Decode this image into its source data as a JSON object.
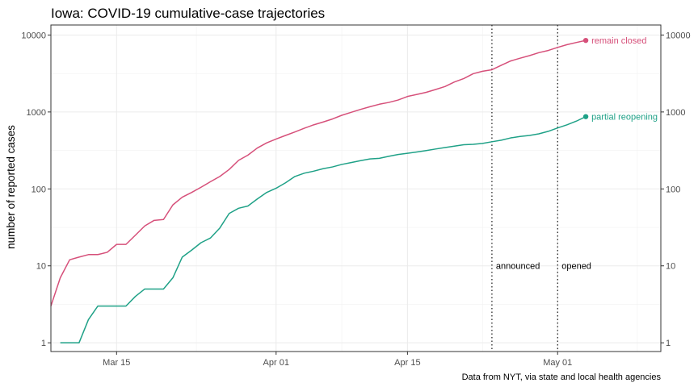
{
  "chart_data": {
    "type": "line",
    "title": "Iowa: COVID-19 cumulative-case trajectories",
    "subtitle": "",
    "xlabel": "",
    "ylabel": "number of reported cases",
    "caption": "Data from NYT, via state and local health agencies",
    "x_axis": {
      "type": "date",
      "range": [
        "2020-03-08",
        "2020-05-12"
      ],
      "ticks": [
        {
          "date": "2020-03-15",
          "label": "Mar 15"
        },
        {
          "date": "2020-04-01",
          "label": "Apr 01"
        },
        {
          "date": "2020-04-15",
          "label": "Apr 15"
        },
        {
          "date": "2020-05-01",
          "label": "May 01"
        }
      ]
    },
    "y_axis": {
      "scale": "log10",
      "range": [
        0.77,
        13500
      ],
      "ticks": [
        1,
        10,
        100,
        1000,
        10000
      ],
      "tick_labels": [
        "1",
        "10",
        "100",
        "1000",
        "10000"
      ],
      "secondary_axis": true
    },
    "grid": true,
    "legend": "none",
    "vlines": [
      {
        "date": "2020-04-24",
        "label": "announced",
        "style": "dotted"
      },
      {
        "date": "2020-05-01",
        "label": "opened",
        "style": "dotted"
      }
    ],
    "series": [
      {
        "name": "remain closed",
        "color": "#D6507A",
        "end_marker": true,
        "points": [
          [
            "2020-03-08",
            3
          ],
          [
            "2020-03-09",
            7
          ],
          [
            "2020-03-10",
            12
          ],
          [
            "2020-03-11",
            13
          ],
          [
            "2020-03-12",
            14
          ],
          [
            "2020-03-13",
            14
          ],
          [
            "2020-03-14",
            15
          ],
          [
            "2020-03-15",
            19
          ],
          [
            "2020-03-16",
            19
          ],
          [
            "2020-03-17",
            25
          ],
          [
            "2020-03-18",
            33
          ],
          [
            "2020-03-19",
            39
          ],
          [
            "2020-03-20",
            40
          ],
          [
            "2020-03-21",
            62
          ],
          [
            "2020-03-22",
            78
          ],
          [
            "2020-03-23",
            90
          ],
          [
            "2020-03-24",
            105
          ],
          [
            "2020-03-25",
            124
          ],
          [
            "2020-03-26",
            145
          ],
          [
            "2020-03-27",
            179
          ],
          [
            "2020-03-28",
            235
          ],
          [
            "2020-03-29",
            275
          ],
          [
            "2020-03-30",
            340
          ],
          [
            "2020-03-31",
            397
          ],
          [
            "2020-04-01",
            445
          ],
          [
            "2020-04-02",
            495
          ],
          [
            "2020-04-03",
            550
          ],
          [
            "2020-04-04",
            614
          ],
          [
            "2020-04-05",
            680
          ],
          [
            "2020-04-06",
            740
          ],
          [
            "2020-04-07",
            810
          ],
          [
            "2020-04-08",
            905
          ],
          [
            "2020-04-09",
            990
          ],
          [
            "2020-04-10",
            1080
          ],
          [
            "2020-04-11",
            1170
          ],
          [
            "2020-04-12",
            1260
          ],
          [
            "2020-04-13",
            1330
          ],
          [
            "2020-04-14",
            1430
          ],
          [
            "2020-04-15",
            1590
          ],
          [
            "2020-04-16",
            1690
          ],
          [
            "2020-04-17",
            1800
          ],
          [
            "2020-04-18",
            1960
          ],
          [
            "2020-04-19",
            2140
          ],
          [
            "2020-04-20",
            2450
          ],
          [
            "2020-04-21",
            2720
          ],
          [
            "2020-04-22",
            3140
          ],
          [
            "2020-04-23",
            3380
          ],
          [
            "2020-04-24",
            3540
          ],
          [
            "2020-04-25",
            4050
          ],
          [
            "2020-04-26",
            4600
          ],
          [
            "2020-04-27",
            5000
          ],
          [
            "2020-04-28",
            5400
          ],
          [
            "2020-04-29",
            5900
          ],
          [
            "2020-04-30",
            6300
          ],
          [
            "2020-05-01",
            6900
          ],
          [
            "2020-05-02",
            7500
          ],
          [
            "2020-05-03",
            8000
          ],
          [
            "2020-05-04",
            8500
          ]
        ]
      },
      {
        "name": "partial reopening",
        "color": "#1FA187",
        "end_marker": true,
        "points": [
          [
            "2020-03-09",
            1
          ],
          [
            "2020-03-10",
            1
          ],
          [
            "2020-03-11",
            1
          ],
          [
            "2020-03-12",
            2
          ],
          [
            "2020-03-13",
            3
          ],
          [
            "2020-03-14",
            3
          ],
          [
            "2020-03-15",
            3
          ],
          [
            "2020-03-16",
            3
          ],
          [
            "2020-03-17",
            4
          ],
          [
            "2020-03-18",
            5
          ],
          [
            "2020-03-19",
            5
          ],
          [
            "2020-03-20",
            5
          ],
          [
            "2020-03-21",
            7
          ],
          [
            "2020-03-22",
            13
          ],
          [
            "2020-03-23",
            16
          ],
          [
            "2020-03-24",
            20
          ],
          [
            "2020-03-25",
            23
          ],
          [
            "2020-03-26",
            31
          ],
          [
            "2020-03-27",
            48
          ],
          [
            "2020-03-28",
            56
          ],
          [
            "2020-03-29",
            60
          ],
          [
            "2020-03-30",
            74
          ],
          [
            "2020-03-31",
            90
          ],
          [
            "2020-04-01",
            102
          ],
          [
            "2020-04-02",
            120
          ],
          [
            "2020-04-03",
            145
          ],
          [
            "2020-04-04",
            160
          ],
          [
            "2020-04-05",
            170
          ],
          [
            "2020-04-06",
            183
          ],
          [
            "2020-04-07",
            193
          ],
          [
            "2020-04-08",
            208
          ],
          [
            "2020-04-09",
            220
          ],
          [
            "2020-04-10",
            233
          ],
          [
            "2020-04-11",
            245
          ],
          [
            "2020-04-12",
            250
          ],
          [
            "2020-04-13",
            265
          ],
          [
            "2020-04-14",
            280
          ],
          [
            "2020-04-15",
            290
          ],
          [
            "2020-04-16",
            302
          ],
          [
            "2020-04-17",
            315
          ],
          [
            "2020-04-18",
            330
          ],
          [
            "2020-04-19",
            345
          ],
          [
            "2020-04-20",
            360
          ],
          [
            "2020-04-21",
            375
          ],
          [
            "2020-04-22",
            380
          ],
          [
            "2020-04-23",
            390
          ],
          [
            "2020-04-24",
            410
          ],
          [
            "2020-04-25",
            430
          ],
          [
            "2020-04-26",
            460
          ],
          [
            "2020-04-27",
            480
          ],
          [
            "2020-04-28",
            495
          ],
          [
            "2020-04-29",
            520
          ],
          [
            "2020-04-30",
            560
          ],
          [
            "2020-05-01",
            620
          ],
          [
            "2020-05-02",
            680
          ],
          [
            "2020-05-03",
            760
          ],
          [
            "2020-05-04",
            870
          ]
        ]
      }
    ]
  }
}
